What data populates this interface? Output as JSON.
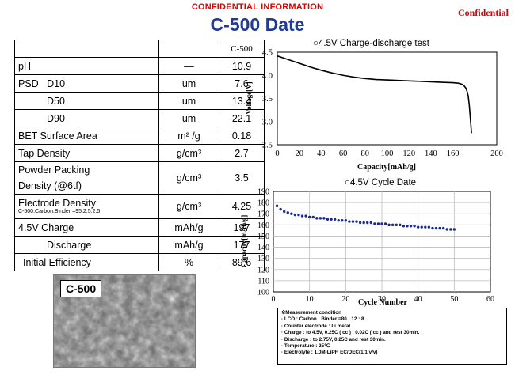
{
  "header": {
    "banner": "CONFIDENTIAL INFORMATION",
    "confidential": "Confidential",
    "title": "C-500 Date",
    "title_color": "#1f3a8f",
    "alert_color": "#e00000"
  },
  "table": {
    "product": "C-500",
    "rows": [
      {
        "name": "pH",
        "unit": "—",
        "value": "10.9"
      },
      {
        "name": "PSD   D10",
        "unit": "um",
        "value": "7.6"
      },
      {
        "name": "D50",
        "unit": "um",
        "value": "13.4"
      },
      {
        "name": "D90",
        "unit": "um",
        "value": "22.1"
      },
      {
        "name": "BET Surface Area",
        "unit": "m² /g",
        "value": "0.18"
      },
      {
        "name": "Tap Density",
        "unit": "g/cm³",
        "value": "2.7"
      },
      {
        "name": "Powder Packing",
        "name2": "Density (@6tf)",
        "unit": "g/cm³",
        "value": "3.5"
      },
      {
        "name": "Electrode Density",
        "note": "C-500:Carbon:Binder =95:2.5:2.5",
        "unit": "g/cm³",
        "value": "4.25"
      },
      {
        "name": "4.5V Charge",
        "unit": "mAh/g",
        "value": "197"
      },
      {
        "name": "Discharge",
        "unit": "mAh/g",
        "value": "177"
      },
      {
        "name": "Initial Efficiency",
        "unit": "%",
        "value": "89.6"
      }
    ]
  },
  "photo": {
    "label": "C-500"
  },
  "chart_data": [
    {
      "type": "line",
      "title": "○4.5V Charge-discharge test",
      "xlabel": "Capacity[mAh/g]",
      "ylabel": "Voltage[V]",
      "xlim": [
        0,
        200
      ],
      "ylim": [
        2.5,
        4.5
      ],
      "xticks": [
        "0",
        "20",
        "40",
        "60",
        "80",
        "100",
        "120",
        "140",
        "160",
        "200"
      ],
      "xtick_values": [
        0,
        20,
        40,
        60,
        80,
        100,
        120,
        140,
        160,
        200
      ],
      "yticks": [
        "2.5",
        "3.0",
        "3.5",
        "4.0",
        "4.5"
      ],
      "ytick_values": [
        2.5,
        3.0,
        3.5,
        4.0,
        4.5
      ],
      "series": [
        {
          "x": [
            0,
            5,
            10,
            20,
            30,
            40,
            50,
            60,
            70,
            80,
            90,
            100,
            110,
            120,
            130,
            140,
            150,
            160,
            165,
            168,
            170,
            172,
            173,
            174,
            175,
            176,
            177
          ],
          "y": [
            4.42,
            4.38,
            4.34,
            4.26,
            4.18,
            4.11,
            4.05,
            4.0,
            3.96,
            3.93,
            3.91,
            3.9,
            3.89,
            3.88,
            3.87,
            3.86,
            3.85,
            3.84,
            3.83,
            3.81,
            3.78,
            3.72,
            3.65,
            3.55,
            3.35,
            3.05,
            2.75
          ]
        }
      ]
    },
    {
      "type": "scatter",
      "title": "○4.5V Cycle Date",
      "xlabel": "Cycle Number",
      "ylabel": "Capacity[mAh/g]",
      "xlim": [
        0,
        60
      ],
      "ylim": [
        100,
        190
      ],
      "xticks": [
        "0",
        "10",
        "20",
        "30",
        "40",
        "50",
        "60"
      ],
      "xtick_values": [
        0,
        10,
        20,
        30,
        40,
        50,
        60
      ],
      "yticks": [
        "100",
        "110",
        "120",
        "130",
        "140",
        "150",
        "160",
        "170",
        "180",
        "190"
      ],
      "ytick_values": [
        100,
        110,
        120,
        130,
        140,
        150,
        160,
        170,
        180,
        190
      ],
      "series": [
        {
          "x": [
            1,
            2,
            3,
            4,
            5,
            6,
            7,
            8,
            9,
            10,
            11,
            12,
            13,
            14,
            15,
            16,
            17,
            18,
            19,
            20,
            21,
            22,
            23,
            24,
            25,
            26,
            27,
            28,
            29,
            30,
            31,
            32,
            33,
            34,
            35,
            36,
            37,
            38,
            39,
            40,
            41,
            42,
            43,
            44,
            45,
            46,
            47,
            48,
            49,
            50
          ],
          "y": [
            177,
            174,
            172,
            171,
            170,
            169,
            169,
            168,
            168,
            167,
            167,
            166,
            166,
            166,
            165,
            165,
            165,
            164,
            164,
            164,
            163,
            163,
            163,
            162,
            162,
            162,
            162,
            161,
            161,
            161,
            161,
            160,
            160,
            160,
            160,
            159,
            159,
            159,
            159,
            158,
            158,
            158,
            158,
            157,
            157,
            157,
            157,
            156,
            156,
            156
          ]
        }
      ]
    }
  ],
  "measurement": {
    "lines": [
      "※Measurement condition",
      "· LCO : Carbon : Binder =80 : 12 : 8",
      "· Counter electrode : Li metal",
      "· Charge : to 4.5V,  0.25C ( cc ) , 0.02C ( cc )  and rest 30min.",
      "· Discharge : to 2.75V, 0.25C and rest 30min.",
      "· Temperature : 25℃",
      "· Electrolyte : 1.0M-LiPF, EC/DEC(1/1 v/v)"
    ]
  }
}
